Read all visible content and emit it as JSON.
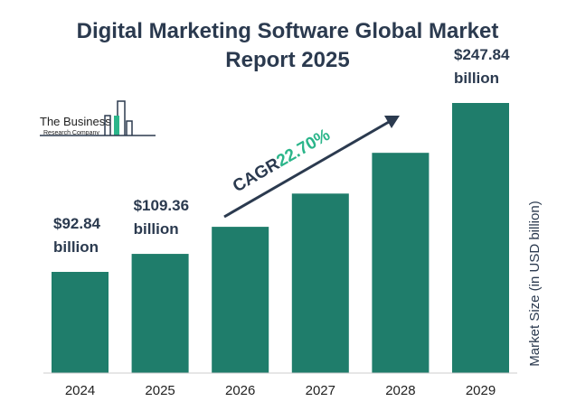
{
  "chart_data": {
    "type": "bar",
    "title_lines": [
      "Digital Marketing Software Global Market",
      "Report 2025"
    ],
    "categories": [
      "2024",
      "2025",
      "2026",
      "2027",
      "2028",
      "2029"
    ],
    "values": [
      92.84,
      109.36,
      134.2,
      164.7,
      202.1,
      247.84
    ],
    "data_labels": [
      [
        "$92.84",
        "billion"
      ],
      [
        "$109.36",
        "billion"
      ],
      null,
      null,
      null,
      [
        "$247.84",
        "billion"
      ]
    ],
    "ylabel": "Market Size (in USD billion)",
    "ylim": [
      0,
      247.84
    ],
    "grid": false,
    "cagr": {
      "label": "CAGR",
      "value": "22.70%"
    },
    "colors": {
      "bar": "#1f7d6b",
      "title": "#2b3a4f",
      "cagr_value": "#2bb58a"
    }
  },
  "logo": {
    "line1": "The Business",
    "line2": "Research Company"
  }
}
